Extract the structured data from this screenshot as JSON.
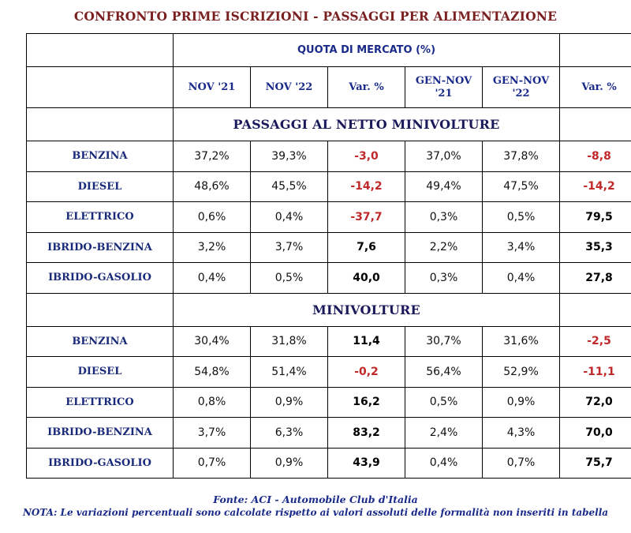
{
  "title": "CONFRONTO PRIME ISCRIZIONI - PASSAGGI PER ALIMENTAZIONE",
  "header": {
    "quota": "QUOTA DI MERCATO (%)",
    "columns": [
      {
        "line1": "NOV '21",
        "line2": ""
      },
      {
        "line1": "NOV '22",
        "line2": ""
      },
      {
        "line1": "Var. %",
        "line2": ""
      },
      {
        "line1": "GEN-NOV",
        "line2": "'21"
      },
      {
        "line1": "GEN-NOV",
        "line2": "'22"
      },
      {
        "line1": "Var. %",
        "line2": ""
      }
    ]
  },
  "sections": [
    {
      "title": "PASSAGGI AL NETTO MINIVOLTURE",
      "rows": [
        {
          "label": "BENZINA",
          "nov21": "37,2%",
          "nov22": "39,3%",
          "var1": "-3,0",
          "var1_neg": true,
          "gn21": "37,0%",
          "gn22": "37,8%",
          "var2": "-8,8",
          "var2_neg": true
        },
        {
          "label": "DIESEL",
          "nov21": "48,6%",
          "nov22": "45,5%",
          "var1": "-14,2",
          "var1_neg": true,
          "gn21": "49,4%",
          "gn22": "47,5%",
          "var2": "-14,2",
          "var2_neg": true
        },
        {
          "label": "ELETTRICO",
          "nov21": "0,6%",
          "nov22": "0,4%",
          "var1": "-37,7",
          "var1_neg": true,
          "gn21": "0,3%",
          "gn22": "0,5%",
          "var2": "79,5",
          "var2_neg": false
        },
        {
          "label": "IBRIDO-BENZINA",
          "nov21": "3,2%",
          "nov22": "3,7%",
          "var1": "7,6",
          "var1_neg": false,
          "gn21": "2,2%",
          "gn22": "3,4%",
          "var2": "35,3",
          "var2_neg": false
        },
        {
          "label": "IBRIDO-GASOLIO",
          "nov21": "0,4%",
          "nov22": "0,5%",
          "var1": "40,0",
          "var1_neg": false,
          "gn21": "0,3%",
          "gn22": "0,4%",
          "var2": "27,8",
          "var2_neg": false
        }
      ]
    },
    {
      "title": "MINIVOLTURE",
      "rows": [
        {
          "label": "BENZINA",
          "nov21": "30,4%",
          "nov22": "31,8%",
          "var1": "11,4",
          "var1_neg": false,
          "gn21": "30,7%",
          "gn22": "31,6%",
          "var2": "-2,5",
          "var2_neg": true
        },
        {
          "label": "DIESEL",
          "nov21": "54,8%",
          "nov22": "51,4%",
          "var1": "-0,2",
          "var1_neg": true,
          "gn21": "56,4%",
          "gn22": "52,9%",
          "var2": "-11,1",
          "var2_neg": true
        },
        {
          "label": "ELETTRICO",
          "nov21": "0,8%",
          "nov22": "0,9%",
          "var1": "16,2",
          "var1_neg": false,
          "gn21": "0,5%",
          "gn22": "0,9%",
          "var2": "72,0",
          "var2_neg": false
        },
        {
          "label": "IBRIDO-BENZINA",
          "nov21": "3,7%",
          "nov22": "6,3%",
          "var1": "83,2",
          "var1_neg": false,
          "gn21": "2,4%",
          "gn22": "4,3%",
          "var2": "70,0",
          "var2_neg": false
        },
        {
          "label": "IBRIDO-GASOLIO",
          "nov21": "0,7%",
          "nov22": "0,9%",
          "var1": "43,9",
          "var1_neg": false,
          "gn21": "0,4%",
          "gn22": "0,7%",
          "var2": "75,7",
          "var2_neg": false
        }
      ]
    }
  ],
  "footer": {
    "source": "Fonte: ACI - Automobile Club d'Italia",
    "note": "NOTA: Le variazioni percentuali sono calcolate rispetto ai valori assoluti delle formalità non inseriti in tabella"
  },
  "colors": {
    "title": "#7a2020",
    "header_blue": "#1a2a8a",
    "negative": "#c0282a",
    "positive": "#000000"
  }
}
